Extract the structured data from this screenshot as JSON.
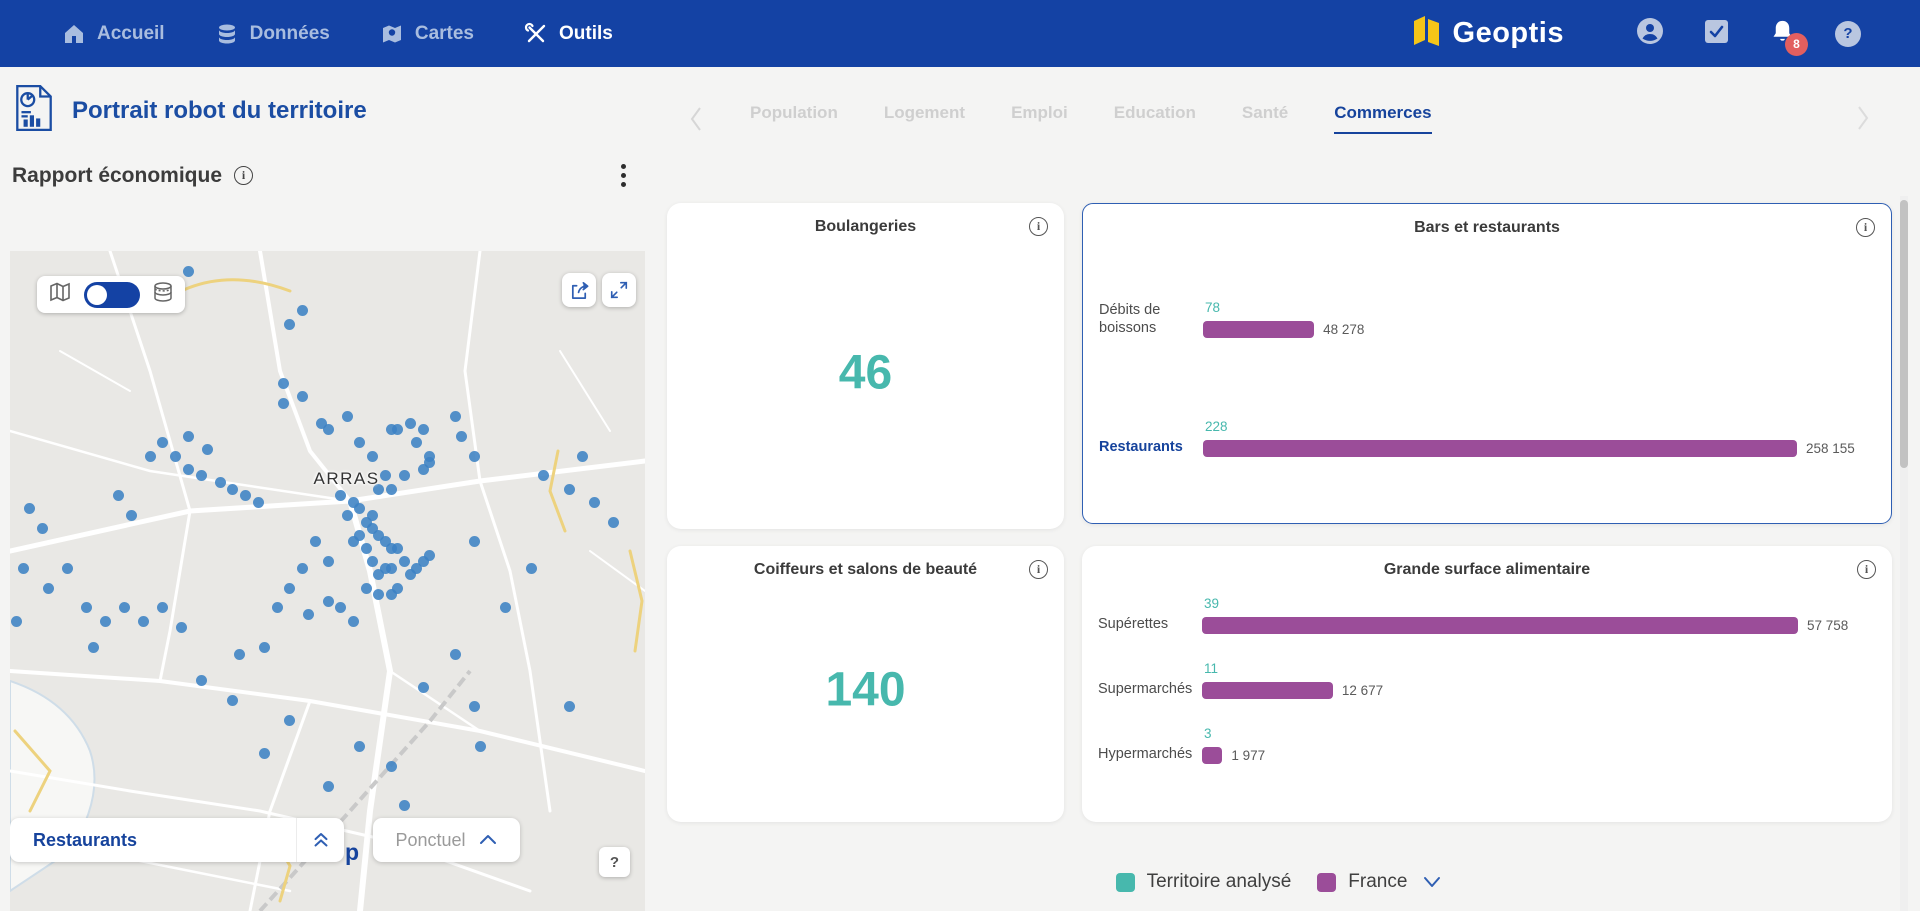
{
  "nav": {
    "items": [
      {
        "label": "Accueil"
      },
      {
        "label": "Données"
      },
      {
        "label": "Cartes"
      },
      {
        "label": "Outils"
      }
    ],
    "active_item": "Outils",
    "brand": "Geoptis",
    "notification_badge": "8"
  },
  "header": {
    "page_title": "Portrait robot du territoire",
    "tabs": [
      {
        "label": "Population"
      },
      {
        "label": "Logement"
      },
      {
        "label": "Emploi"
      },
      {
        "label": "Education"
      },
      {
        "label": "Santé"
      },
      {
        "label": "Commerces"
      }
    ],
    "active_tab": "Commerces"
  },
  "report": {
    "title": "Rapport économique"
  },
  "map": {
    "city_label": "ARRAS",
    "layer_selector_value": "Restaurants",
    "style_selector_value": "Ponctuel",
    "help_button_label": "?",
    "partial_map_text": "p",
    "points": [
      [
        28,
        3
      ],
      [
        46,
        9
      ],
      [
        44,
        11
      ],
      [
        43,
        20
      ],
      [
        46,
        22
      ],
      [
        43,
        23
      ],
      [
        49,
        26
      ],
      [
        50,
        27
      ],
      [
        53,
        25
      ],
      [
        55,
        29
      ],
      [
        57,
        31
      ],
      [
        60,
        27
      ],
      [
        61,
        27
      ],
      [
        63,
        26
      ],
      [
        65,
        27
      ],
      [
        64,
        29
      ],
      [
        66,
        31
      ],
      [
        66,
        32
      ],
      [
        65,
        33
      ],
      [
        62,
        34
      ],
      [
        60,
        36
      ],
      [
        59,
        34
      ],
      [
        58,
        36
      ],
      [
        71,
        28
      ],
      [
        73,
        31
      ],
      [
        70,
        25
      ],
      [
        22,
        31
      ],
      [
        24,
        29
      ],
      [
        26,
        31
      ],
      [
        28,
        33
      ],
      [
        30,
        34
      ],
      [
        33,
        35
      ],
      [
        35,
        36
      ],
      [
        37,
        37
      ],
      [
        39,
        38
      ],
      [
        28,
        28
      ],
      [
        31,
        30
      ],
      [
        17,
        37
      ],
      [
        19,
        40
      ],
      [
        3,
        39
      ],
      [
        5,
        42
      ],
      [
        2,
        48
      ],
      [
        6,
        51
      ],
      [
        1,
        56
      ],
      [
        12,
        54
      ],
      [
        15,
        56
      ],
      [
        18,
        54
      ],
      [
        21,
        56
      ],
      [
        24,
        54
      ],
      [
        27,
        57
      ],
      [
        13,
        60
      ],
      [
        9,
        48
      ],
      [
        52,
        37
      ],
      [
        54,
        38
      ],
      [
        55,
        39
      ],
      [
        53,
        40
      ],
      [
        56,
        41
      ],
      [
        57,
        42
      ],
      [
        58,
        43
      ],
      [
        59,
        44
      ],
      [
        60,
        45
      ],
      [
        61,
        45
      ],
      [
        62,
        47
      ],
      [
        60,
        48
      ],
      [
        59,
        48
      ],
      [
        58,
        49
      ],
      [
        56,
        51
      ],
      [
        58,
        52
      ],
      [
        60,
        52
      ],
      [
        61,
        51
      ],
      [
        63,
        49
      ],
      [
        64,
        48
      ],
      [
        65,
        47
      ],
      [
        66,
        46
      ],
      [
        57,
        40
      ],
      [
        55,
        43
      ],
      [
        54,
        44
      ],
      [
        56,
        45
      ],
      [
        57,
        47
      ],
      [
        48,
        44
      ],
      [
        50,
        47
      ],
      [
        46,
        48
      ],
      [
        44,
        51
      ],
      [
        50,
        53
      ],
      [
        52,
        54
      ],
      [
        54,
        56
      ],
      [
        47,
        55
      ],
      [
        42,
        54
      ],
      [
        84,
        34
      ],
      [
        88,
        36
      ],
      [
        92,
        38
      ],
      [
        95,
        41
      ],
      [
        90,
        31
      ],
      [
        30,
        65
      ],
      [
        35,
        68
      ],
      [
        44,
        71
      ],
      [
        40,
        76
      ],
      [
        55,
        75
      ],
      [
        60,
        78
      ],
      [
        73,
        69
      ],
      [
        65,
        66
      ],
      [
        70,
        61
      ],
      [
        78,
        54
      ],
      [
        82,
        48
      ],
      [
        73,
        44
      ],
      [
        40,
        60
      ],
      [
        36,
        61
      ],
      [
        88,
        69
      ],
      [
        74,
        75
      ],
      [
        50,
        81
      ],
      [
        62,
        84
      ]
    ]
  },
  "legend": {
    "territory_label": "Territoire analysé",
    "france_label": "France"
  },
  "colors": {
    "nav_blue": "#1442a4",
    "accent_blue": "#16439c",
    "teal": "#47b8ad",
    "purple": "#9b4d99",
    "badge_red": "#e25f5f",
    "dot_blue": "#3c82c4",
    "logo_yellow": "#f5c518"
  },
  "chart_data": [
    {
      "type": "number",
      "title": "Boulangeries",
      "value": 46,
      "display_value": "46",
      "value_color": "#47b8ad"
    },
    {
      "type": "bar",
      "title": "Bars et restaurants",
      "orientation": "horizontal",
      "selected": true,
      "axis_max": 258155,
      "series_names": [
        "Territoire analysé",
        "France"
      ],
      "rows": [
        {
          "label": "Débits de boissons",
          "highlight": false,
          "territory": 78,
          "territory_display": "78",
          "france": 48278,
          "france_display": "48 278"
        },
        {
          "label": "Restaurants",
          "highlight": true,
          "territory": 228,
          "territory_display": "228",
          "france": 258155,
          "france_display": "258 155"
        }
      ]
    },
    {
      "type": "number",
      "title": "Coiffeurs et salons de beauté",
      "value": 140,
      "display_value": "140",
      "value_color": "#47b8ad"
    },
    {
      "type": "bar",
      "title": "Grande surface alimentaire",
      "orientation": "horizontal",
      "selected": false,
      "axis_max": 57758,
      "series_names": [
        "Territoire analysé",
        "France"
      ],
      "rows": [
        {
          "label": "Supérettes",
          "highlight": false,
          "territory": 39,
          "territory_display": "39",
          "france": 57758,
          "france_display": "57 758"
        },
        {
          "label": "Supermarchés",
          "highlight": false,
          "territory": 11,
          "territory_display": "11",
          "france": 12677,
          "france_display": "12 677"
        },
        {
          "label": "Hypermarchés",
          "highlight": false,
          "territory": 3,
          "territory_display": "3",
          "france": 1977,
          "france_display": "1 977"
        }
      ]
    }
  ]
}
